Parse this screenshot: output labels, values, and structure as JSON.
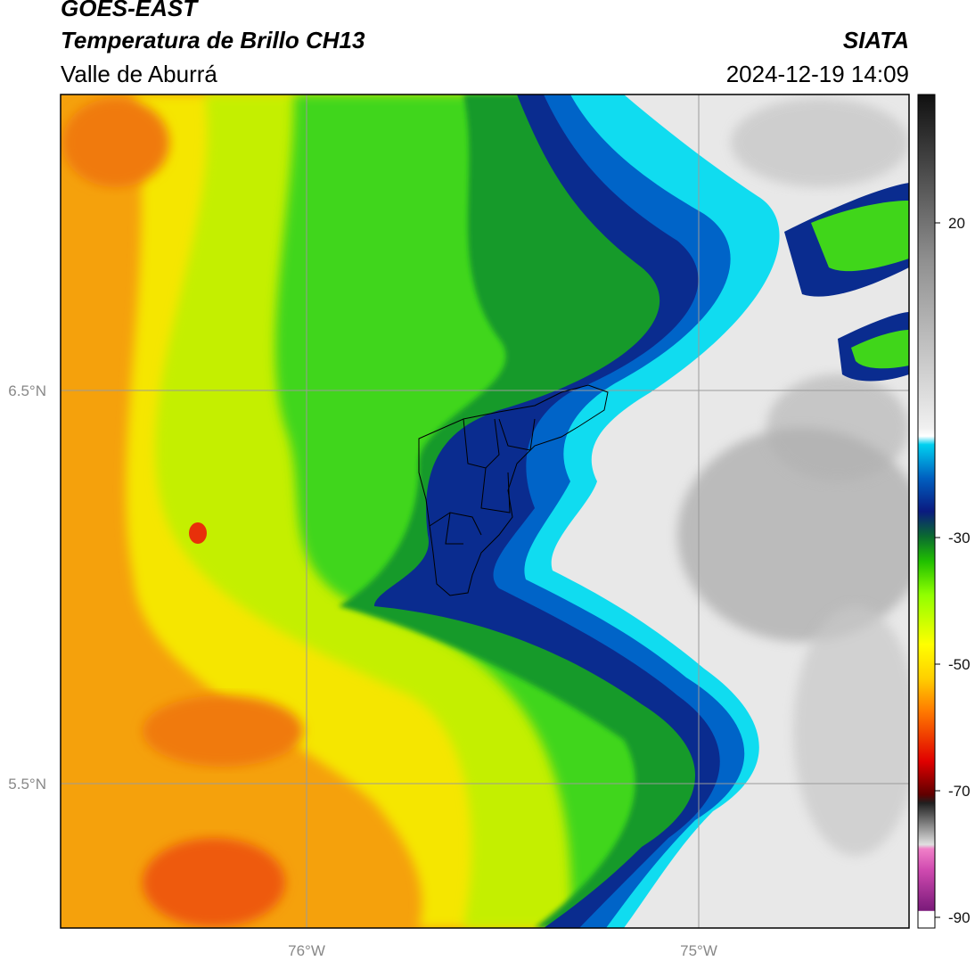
{
  "header": {
    "satellite": "GOES-EAST",
    "product": "Temperatura de Brillo CH13",
    "region": "Valle de Aburrá",
    "organization": "SIATA",
    "datetime": "2024-12-19 14:09"
  },
  "map": {
    "lat_labels": [
      "6.5°N",
      "5.5°N"
    ],
    "lon_labels": [
      "76°W",
      "75°W"
    ]
  },
  "colorbar": {
    "ticks": [
      "20",
      "-30",
      "-50",
      "-70",
      "-90"
    ]
  },
  "colors": {
    "warm_orange": "#f77f0a",
    "yellow": "#f2f000",
    "yellow_green": "#c8f000",
    "green": "#33cc00",
    "dark_green": "#0a8a2a",
    "dark_blue": "#0a2a8a",
    "cyan": "#10e0f0",
    "light_gray": "#e6e6e6",
    "mid_gray": "#a0a0a0"
  }
}
